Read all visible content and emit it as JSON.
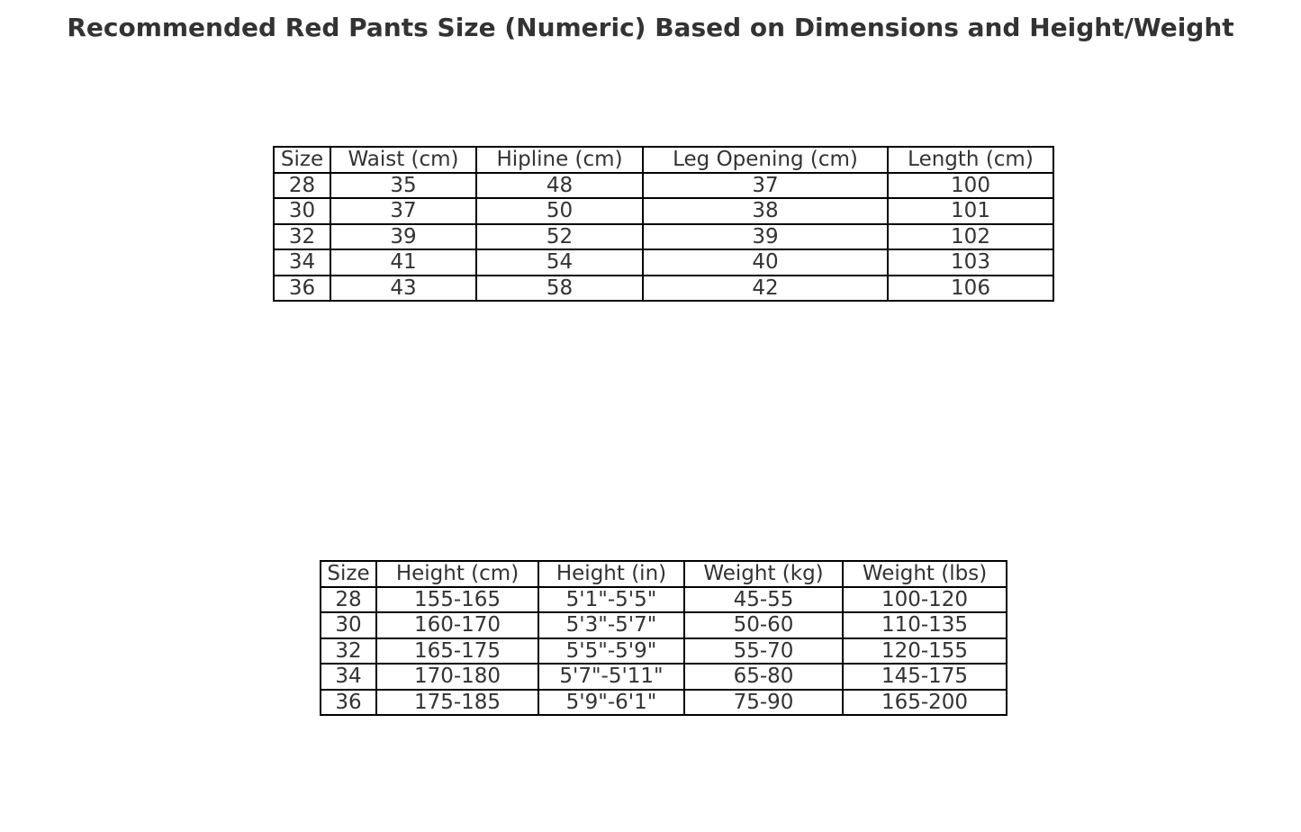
{
  "chart_data": [
    {
      "type": "table",
      "title": "Recommended Red Pants Size (Numeric) Based on Dimensions and Height/Weight",
      "columns": [
        "Size",
        "Waist (cm)",
        "Hipline (cm)",
        "Leg Opening (cm)",
        "Length (cm)"
      ],
      "rows": [
        [
          "28",
          "35",
          "48",
          "37",
          "100"
        ],
        [
          "30",
          "37",
          "50",
          "38",
          "101"
        ],
        [
          "32",
          "39",
          "52",
          "39",
          "102"
        ],
        [
          "34",
          "41",
          "54",
          "40",
          "103"
        ],
        [
          "36",
          "43",
          "58",
          "42",
          "106"
        ]
      ]
    },
    {
      "type": "table",
      "columns": [
        "Size",
        "Height (cm)",
        "Height (in)",
        "Weight (kg)",
        "Weight (lbs)"
      ],
      "rows": [
        [
          "28",
          "155-165",
          "5'1\"-5'5\"",
          "45-55",
          "100-120"
        ],
        [
          "30",
          "160-170",
          "5'3\"-5'7\"",
          "50-60",
          "110-135"
        ],
        [
          "32",
          "165-175",
          "5'5\"-5'9\"",
          "55-70",
          "120-155"
        ],
        [
          "34",
          "170-180",
          "5'7\"-5'11\"",
          "65-80",
          "145-175"
        ],
        [
          "36",
          "175-185",
          "5'9\"-6'1\"",
          "75-90",
          "165-200"
        ]
      ]
    }
  ]
}
